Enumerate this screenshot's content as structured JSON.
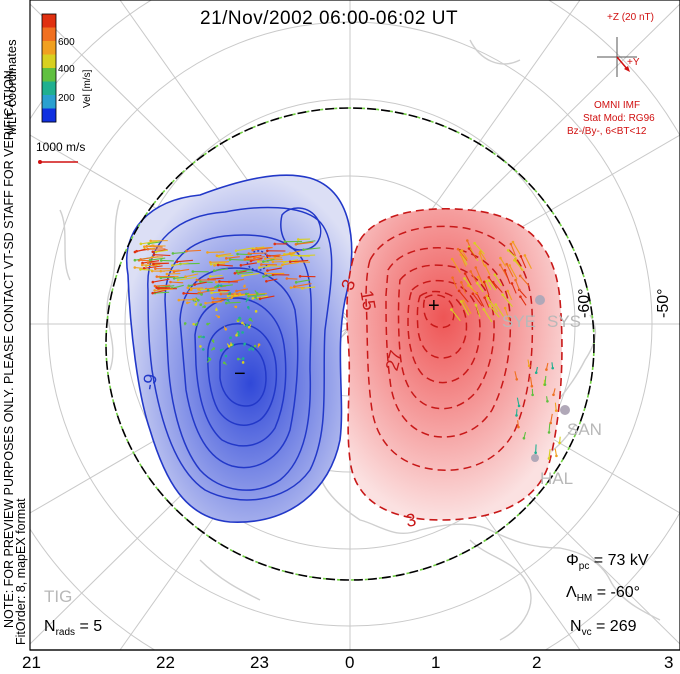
{
  "title": "21/Nov/2002 06:00-06:02 UT",
  "left_notes": {
    "coords": "MLT coordinates",
    "preview": "NOTE: FOR PREVIEW PURPOSES ONLY. PLEASE CONTACT VT-SD STAFF FOR VERIFICATION.",
    "fit": "FitOrder: 8, mapEX format"
  },
  "colorbar": {
    "label": "Vel [m/s]",
    "ticks": [
      "600",
      "400",
      "200"
    ],
    "colors": [
      "#1030e0",
      "#2aa0d0",
      "#20b090",
      "#60c040",
      "#d8d020",
      "#f0a020",
      "#f07020",
      "#e03010"
    ]
  },
  "scale_vector": {
    "label": "1000 m/s",
    "color": "#d01010"
  },
  "imf": {
    "z_label": "+Z (20 nT)",
    "y_label": "+Y",
    "source": "OMNI IMF",
    "model": "Stat Mod: RG96",
    "condition": "Bz-/By-, 6<BT<12",
    "color": "#d01010"
  },
  "latitude_labels": [
    "-60°",
    "-50°"
  ],
  "contour_labels": {
    "negative": [
      "-9"
    ],
    "positive": [
      "3",
      "15",
      "27",
      "3"
    ]
  },
  "stations": [
    "SYE",
    "SYS",
    "SAN",
    "HAL",
    "TIG"
  ],
  "stats": {
    "phi_pc_symbol": "Φ",
    "phi_pc_sub": "pc",
    "phi_pc_value": "= 73 kV",
    "lambda_symbol": "Λ",
    "lambda_sub": "HM",
    "lambda_value": "= -60°",
    "nvc_symbol": "N",
    "nvc_sub": "vc",
    "nvc_value": "= 269",
    "nrads_symbol": "N",
    "nrads_sub": "rads",
    "nrads_value": "= 5"
  },
  "mlt_ticks": [
    "21",
    "22",
    "23",
    "0",
    "1",
    "2",
    "3"
  ],
  "potential_extrema": {
    "min": "−",
    "max": "+"
  },
  "colors": {
    "negative_cell": "#2238c8",
    "negative_fill": "#c8cdf0",
    "positive_cell": "#c81818",
    "positive_fill": "#f6c8c8",
    "hmb_dash": "#70d040",
    "grid": "#c8c8c8",
    "coast": "#d0d0d0"
  }
}
